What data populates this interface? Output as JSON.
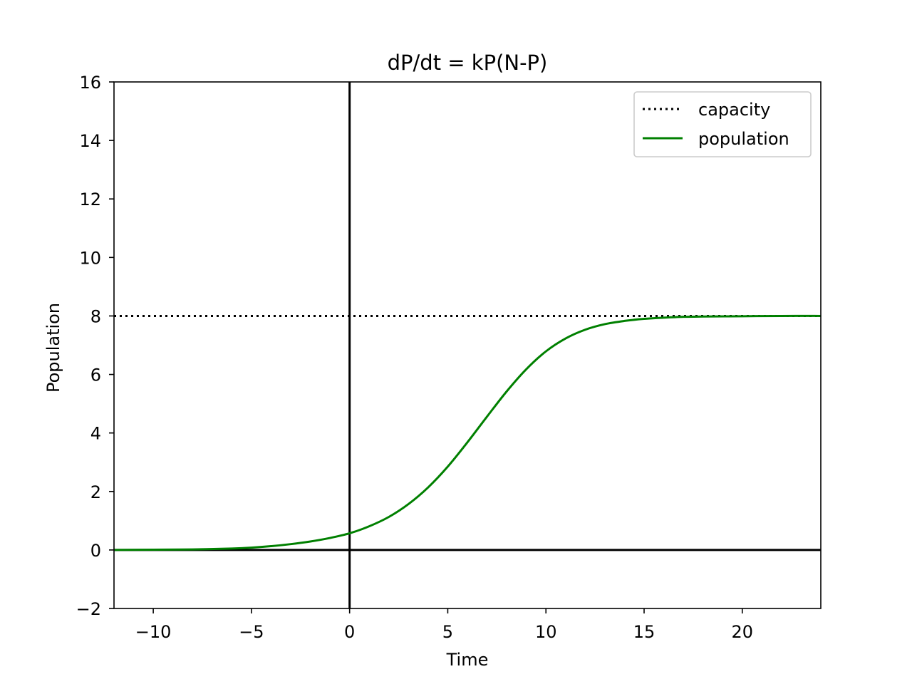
{
  "chart_data": {
    "type": "line",
    "title": "dP/dt = kP(N-P)",
    "xlabel": "Time",
    "ylabel": "Population",
    "xlim": [
      -12,
      24
    ],
    "ylim": [
      -2,
      16
    ],
    "xticks": [
      -10,
      -5,
      0,
      5,
      10,
      15,
      20
    ],
    "yticks": [
      -2,
      0,
      2,
      4,
      6,
      8,
      10,
      12,
      14,
      16
    ],
    "xtick_labels": [
      "−10",
      "−5",
      "0",
      "5",
      "10",
      "15",
      "20"
    ],
    "ytick_labels": [
      "−2",
      "0",
      "2",
      "4",
      "6",
      "8",
      "10",
      "12",
      "14",
      "16"
    ],
    "grid": false,
    "legend_position": "top-right",
    "reference_lines": [
      {
        "orientation": "vertical",
        "x": 0,
        "color": "#000000"
      },
      {
        "orientation": "horizontal",
        "y": 0,
        "color": "#000000"
      }
    ],
    "series": [
      {
        "name": "capacity",
        "style": "dotted",
        "color": "#000000",
        "x": [
          -12,
          24
        ],
        "y": [
          8,
          8
        ]
      },
      {
        "name": "population",
        "style": "solid",
        "color": "#008000",
        "x": [
          -12,
          -10,
          -8,
          -6,
          -5,
          -4,
          -3,
          -2,
          -1,
          0,
          1,
          2,
          3,
          4,
          5,
          6,
          7,
          8,
          9,
          10,
          11,
          12,
          13,
          14,
          15,
          16,
          17,
          18,
          20,
          22,
          24
        ],
        "y": [
          0.0,
          0.01,
          0.02,
          0.05,
          0.08,
          0.13,
          0.2,
          0.29,
          0.41,
          0.57,
          0.81,
          1.13,
          1.57,
          2.14,
          2.85,
          3.68,
          4.56,
          5.42,
          6.18,
          6.79,
          7.23,
          7.53,
          7.72,
          7.83,
          7.9,
          7.94,
          7.97,
          7.98,
          7.99,
          8.0,
          8.0
        ]
      }
    ]
  }
}
